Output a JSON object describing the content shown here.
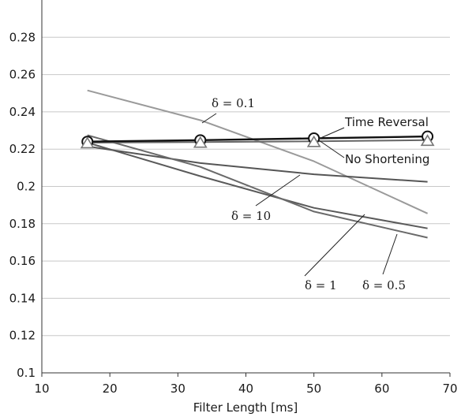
{
  "chart_data": {
    "type": "line",
    "title": "",
    "xlabel": "Filter Length [ms]",
    "ylabel": "",
    "xlim": [
      10,
      70
    ],
    "ylim": [
      0.1,
      0.3
    ],
    "xticks": [
      10,
      20,
      30,
      40,
      50,
      60,
      70
    ],
    "xtick_labels": [
      "10",
      "20",
      "30",
      "40",
      "50",
      "60",
      "70"
    ],
    "yticks": [
      0.1,
      0.12,
      0.14,
      0.16,
      0.18,
      0.2,
      0.22,
      0.24,
      0.26,
      0.28
    ],
    "ytick_labels": [
      "0.1",
      "0.12",
      "0.14",
      "0.16",
      "0.18",
      "0.2",
      "0.22",
      "0.24",
      "0.26",
      "0.28"
    ],
    "grid": true,
    "x": [
      16.7,
      33.3,
      50,
      66.7
    ],
    "series": [
      {
        "name": "Time Reversal",
        "values": [
          0.224,
          0.2248,
          0.2258,
          0.2268
        ],
        "color": "#111111",
        "marker": "circle"
      },
      {
        "name": "No Shortening",
        "values": [
          0.2235,
          0.2238,
          0.2242,
          0.2248
        ],
        "color": "#666666",
        "marker": "triangle"
      },
      {
        "name": "δ = 0.1",
        "values": [
          0.2515,
          0.2355,
          0.2135,
          0.1855
        ],
        "color": "#9a9a9a",
        "marker": "none"
      },
      {
        "name": "δ = 10",
        "values": [
          0.2215,
          0.2125,
          0.2065,
          0.2025
        ],
        "color": "#555555",
        "marker": "none"
      },
      {
        "name": "δ = 1",
        "values": [
          0.2275,
          0.2105,
          0.1865,
          0.1725
        ],
        "color": "#6a6a6a",
        "marker": "none"
      },
      {
        "name": "δ = 0.5",
        "values": [
          0.2235,
          0.2055,
          0.1885,
          0.1775
        ],
        "color": "#5a5a5a",
        "marker": "none"
      }
    ],
    "annotations": [
      {
        "text": "δ = 0.1",
        "series": "δ = 0.1"
      },
      {
        "text": "Time Reversal",
        "series": "Time Reversal"
      },
      {
        "text": "No Shortening",
        "series": "No Shortening"
      },
      {
        "text": "δ = 10",
        "series": "δ = 10"
      },
      {
        "text": "δ = 1",
        "series": "δ = 1"
      },
      {
        "text": "δ = 0.5",
        "series": "δ = 0.5"
      }
    ]
  }
}
